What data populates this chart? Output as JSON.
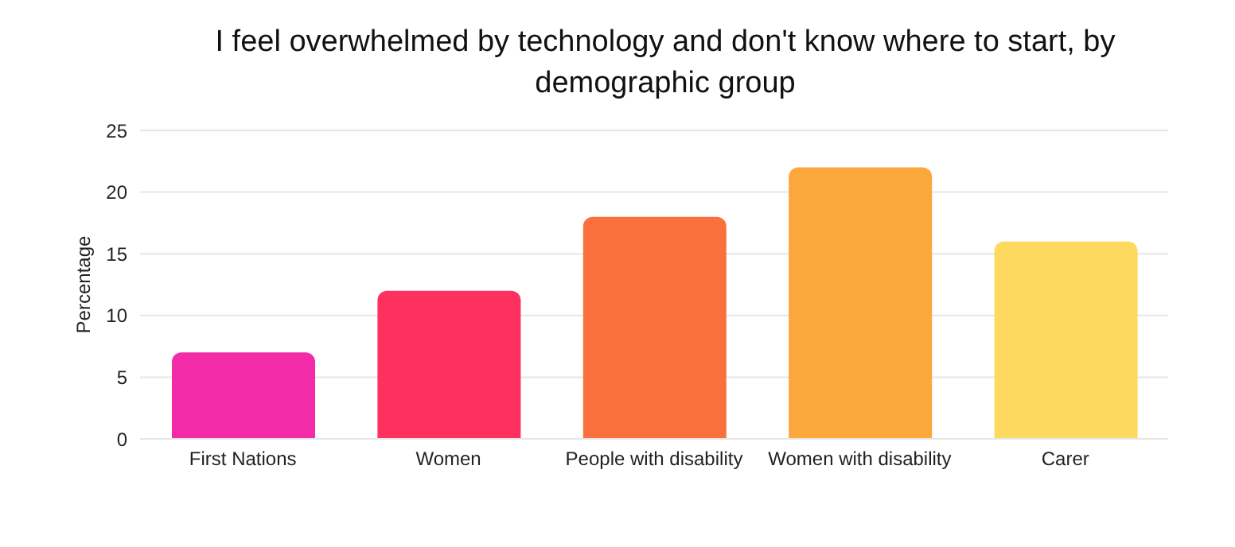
{
  "chart_data": {
    "type": "bar",
    "title": "I feel overwhelmed by technology and don't know where to start, by demographic group",
    "ylabel": "Percentage",
    "categories": [
      "First Nations",
      "Women",
      "People with disability",
      "Women with disability",
      "Carer"
    ],
    "values": [
      7,
      12,
      18,
      22,
      16
    ],
    "colors": [
      "#f42ba8",
      "#fe3060",
      "#f9703c",
      "#fca73c",
      "#fed95f"
    ],
    "ylim": [
      0,
      25
    ],
    "yticks": [
      0,
      5,
      10,
      15,
      20,
      25
    ],
    "grid": "y"
  }
}
